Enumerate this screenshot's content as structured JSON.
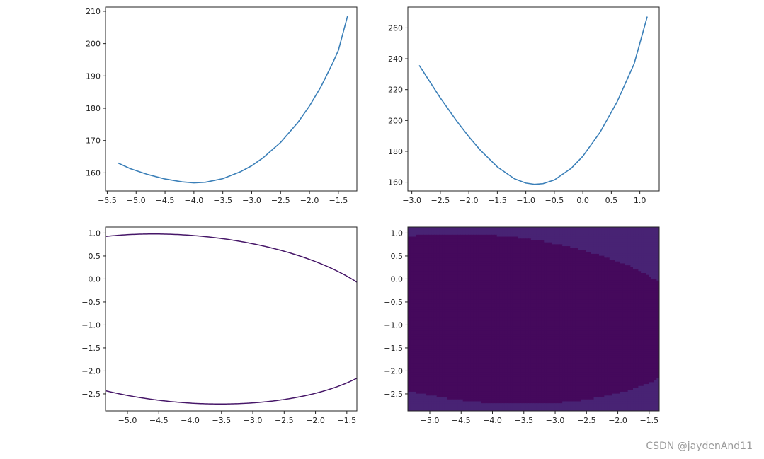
{
  "watermark": "CSDN @jaydenAnd11",
  "colors": {
    "line": "#3a7fb8",
    "axes": "#222222"
  },
  "chart_data": [
    {
      "id": "top-left",
      "type": "line",
      "xlim": [
        -5.53,
        -1.18
      ],
      "ylim": [
        154.4,
        211.3
      ],
      "xticks": [
        -5.5,
        -5.0,
        -4.5,
        -4.0,
        -3.5,
        -3.0,
        -2.5,
        -2.0,
        -1.5
      ],
      "xtick_labels": [
        "−5.5",
        "−5.0",
        "−4.5",
        "−4.0",
        "−3.5",
        "−3.0",
        "−2.5",
        "−2.0",
        "−1.5"
      ],
      "yticks": [
        160,
        170,
        180,
        190,
        200,
        210
      ],
      "ytick_labels": [
        "160",
        "170",
        "180",
        "190",
        "200",
        "210"
      ],
      "x": [
        -5.32,
        -5.1,
        -4.8,
        -4.5,
        -4.2,
        -4.0,
        -3.8,
        -3.5,
        -3.2,
        -3.0,
        -2.8,
        -2.5,
        -2.2,
        -2.0,
        -1.8,
        -1.6,
        -1.5,
        -1.34
      ],
      "y": [
        163.1,
        161.3,
        159.5,
        158.1,
        157.2,
        156.9,
        157.1,
        158.2,
        160.3,
        162.2,
        164.7,
        169.4,
        175.6,
        180.7,
        186.7,
        193.9,
        197.9,
        208.6
      ]
    },
    {
      "id": "top-right",
      "type": "line",
      "xlim": [
        -3.07,
        1.34
      ],
      "ylim": [
        154.3,
        273.5
      ],
      "xticks": [
        -3.0,
        -2.5,
        -2.0,
        -1.5,
        -1.0,
        -0.5,
        0.0,
        0.5,
        1.0
      ],
      "xtick_labels": [
        "−3.0",
        "−2.5",
        "−2.0",
        "−1.5",
        "−1.0",
        "−0.5",
        "0.0",
        "0.5",
        "1.0"
      ],
      "yticks": [
        160,
        180,
        200,
        220,
        240,
        260
      ],
      "ytick_labels": [
        "160",
        "180",
        "200",
        "220",
        "240",
        "260"
      ],
      "x": [
        -2.87,
        -2.5,
        -2.2,
        -2.0,
        -1.8,
        -1.5,
        -1.2,
        -1.0,
        -0.85,
        -0.7,
        -0.5,
        -0.2,
        0.0,
        0.3,
        0.6,
        0.9,
        1.13
      ],
      "y": [
        235.7,
        214.6,
        199.0,
        189.5,
        180.8,
        169.9,
        162.2,
        159.4,
        158.6,
        159.0,
        161.4,
        169.1,
        176.8,
        192.2,
        212.0,
        236.7,
        267.3
      ]
    },
    {
      "id": "bottom-left",
      "type": "contour",
      "xlim": [
        -5.35,
        -1.34
      ],
      "ylim": [
        -2.87,
        1.13
      ],
      "xticks": [
        -5.0,
        -4.5,
        -4.0,
        -3.5,
        -3.0,
        -2.5,
        -2.0,
        -1.5
      ],
      "xtick_labels": [
        "−5.0",
        "−4.5",
        "−4.0",
        "−3.5",
        "−3.0",
        "−2.5",
        "−2.0",
        "−1.5"
      ],
      "yticks": [
        -2.5,
        -2.0,
        -1.5,
        -1.0,
        -0.5,
        0.0,
        0.5,
        1.0
      ],
      "ytick_labels": [
        "−2.5",
        "−2.0",
        "−1.5",
        "−1.0",
        "−0.5",
        "0.0",
        "0.5",
        "1.0"
      ],
      "field": {
        "center_x": -4.05,
        "center_y": -0.87,
        "a": 2.35,
        "b": 7.5,
        "c": 1.35,
        "offset": 155.0
      },
      "levels": [
        180,
        210,
        240,
        270,
        300,
        330,
        360,
        390,
        420,
        450,
        480,
        510,
        540
      ],
      "colormap": [
        "#440154",
        "#482475",
        "#414487",
        "#355f8d",
        "#2a788e",
        "#21918c",
        "#22a884",
        "#44bf70",
        "#7ad151",
        "#bddf26",
        "#fde725"
      ],
      "vmin": 155,
      "vmax": 570
    },
    {
      "id": "bottom-right",
      "type": "filled-contour",
      "xlim": [
        -5.35,
        -1.34
      ],
      "ylim": [
        -2.87,
        1.13
      ],
      "xticks": [
        -5.0,
        -4.5,
        -4.0,
        -3.5,
        -3.0,
        -2.5,
        -2.0,
        -1.5
      ],
      "xtick_labels": [
        "−5.0",
        "−4.5",
        "−4.0",
        "−3.5",
        "−3.0",
        "−2.5",
        "−2.0",
        "−1.5"
      ],
      "yticks": [
        -2.5,
        -2.0,
        -1.5,
        -1.0,
        -0.5,
        0.0,
        0.5,
        1.0
      ],
      "ytick_labels": [
        "−2.5",
        "−2.0",
        "−1.5",
        "−1.0",
        "−0.5",
        "0.0",
        "0.5",
        "1.0"
      ],
      "field": {
        "center_x": -4.05,
        "center_y": -0.87,
        "a": 2.35,
        "b": 7.5,
        "c": 1.35,
        "offset": 155.0
      },
      "levels": [
        150,
        180,
        210,
        240,
        270,
        300,
        330,
        360,
        390,
        420,
        450,
        480,
        510,
        540,
        570
      ],
      "colormap": [
        "#440154",
        "#482475",
        "#414487",
        "#355f8d",
        "#2a788e",
        "#21918c",
        "#22a884",
        "#44bf70",
        "#7ad151",
        "#bddf26",
        "#fde725"
      ],
      "vmin": 155,
      "vmax": 570
    }
  ]
}
